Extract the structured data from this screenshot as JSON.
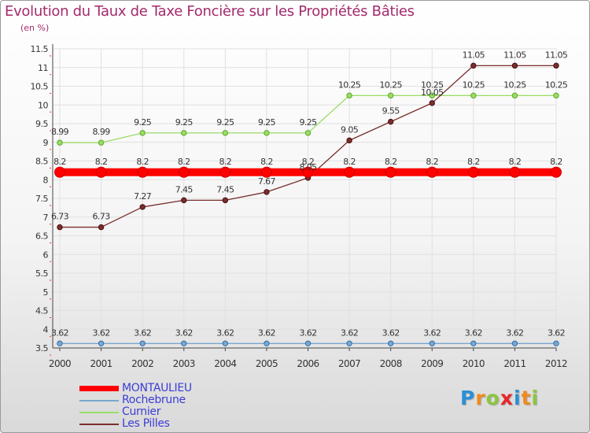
{
  "title": "Evolution du Taux de Taxe Foncière sur les Propriétés Bâties",
  "unit_label": "(en %)",
  "logo": {
    "letters": [
      "P",
      "r",
      "o",
      "x",
      "i",
      "t",
      "i"
    ],
    "colors": [
      "#2a8fd6",
      "#f08a1c",
      "#8cc63f",
      "#e8262a",
      "#2a8fd6",
      "#f08a1c",
      "#8cc63f"
    ]
  },
  "chart_data": {
    "type": "line",
    "x": [
      "2000",
      "2001",
      "2002",
      "2003",
      "2004",
      "2005",
      "2006",
      "2007",
      "2008",
      "2009",
      "2010",
      "2011",
      "2012"
    ],
    "ylim": [
      3.5,
      11.5
    ],
    "yticks": [
      "3.5",
      "4",
      "4.5",
      "5",
      "5.5",
      "6",
      "6.5",
      "7",
      "7.5",
      "8",
      "8.5",
      "9",
      "9.5",
      "10",
      "10.5",
      "11",
      "11.5"
    ],
    "grid": true,
    "legend_position": "bottom-left",
    "series": [
      {
        "name": "MONTAULIEU",
        "color": "#ff0000",
        "values": [
          8.2,
          8.2,
          8.2,
          8.2,
          8.2,
          8.2,
          8.2,
          8.2,
          8.2,
          8.2,
          8.2,
          8.2,
          8.2
        ],
        "labels": [
          "8.2",
          "8.2",
          "8.2",
          "8.2",
          "8.2",
          "8.2",
          "8.2",
          "8.2",
          "8.2",
          "8.2",
          "8.2",
          "8.2",
          "8.2"
        ]
      },
      {
        "name": "Rochebrune",
        "color": "#7aa6cf",
        "values": [
          3.62,
          3.62,
          3.62,
          3.62,
          3.62,
          3.62,
          3.62,
          3.62,
          3.62,
          3.62,
          3.62,
          3.62,
          3.62
        ],
        "labels": [
          "3.62",
          "3.62",
          "3.62",
          "3.62",
          "3.62",
          "3.62",
          "3.62",
          "3.62",
          "3.62",
          "3.62",
          "3.62",
          "3.62",
          "3.62"
        ]
      },
      {
        "name": "Curnier",
        "color": "#99dd66",
        "values": [
          8.99,
          8.99,
          9.25,
          9.25,
          9.25,
          9.25,
          9.25,
          10.25,
          10.25,
          10.25,
          10.25,
          10.25,
          10.25
        ],
        "labels": [
          "8.99",
          "8.99",
          "9.25",
          "9.25",
          "9.25",
          "9.25",
          "9.25",
          "10.25",
          "10.25",
          "10.25",
          "10.25",
          "10.25",
          "10.25"
        ]
      },
      {
        "name": "Les Pilles",
        "color": "#7a2e2e",
        "values": [
          6.73,
          6.73,
          7.27,
          7.45,
          7.45,
          7.67,
          8.05,
          9.05,
          9.55,
          10.05,
          11.05,
          11.05,
          11.05
        ],
        "labels": [
          "6.73",
          "6.73",
          "7.27",
          "7.45",
          "7.45",
          "7.67",
          "8.05",
          "9.05",
          "9.55",
          "10.05",
          "11.05",
          "11.05",
          "11.05"
        ]
      }
    ]
  }
}
